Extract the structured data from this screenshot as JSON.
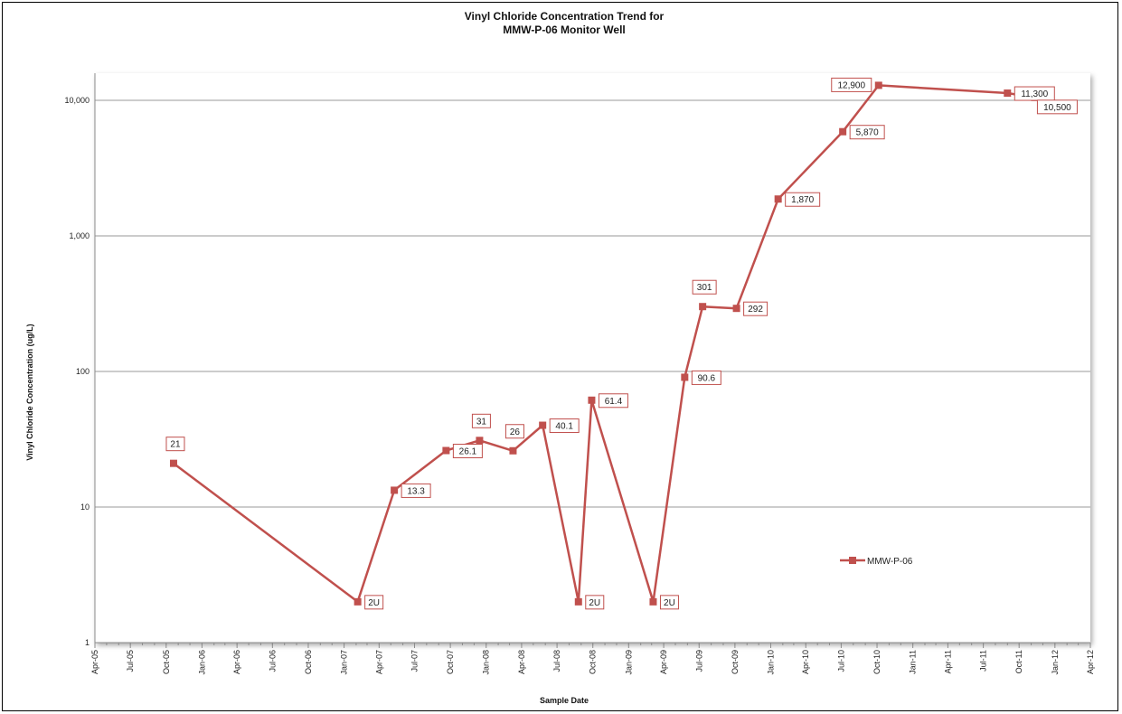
{
  "chart_data": {
    "type": "line",
    "title": "Vinyl Chloride Concentration Trend for",
    "subtitle": "MMW-P-06 Monitor Well",
    "xlabel": "Sample Date",
    "ylabel": "Vinyl Chloride Concentration (ug/L)",
    "y_scale": "log",
    "ylim": [
      1,
      15849
    ],
    "y_ticks": [
      {
        "value": 1,
        "label": "1"
      },
      {
        "value": 10,
        "label": "10"
      },
      {
        "value": 100,
        "label": "100"
      },
      {
        "value": 1000,
        "label": "1,000"
      },
      {
        "value": 10000,
        "label": "10,000"
      }
    ],
    "xlim": [
      "2005-04-01",
      "2012-04-01"
    ],
    "x_ticks": [
      {
        "date": "2005-04-01",
        "label": "Apr-05"
      },
      {
        "date": "2005-07-01",
        "label": "Jul-05"
      },
      {
        "date": "2005-10-01",
        "label": "Oct-05"
      },
      {
        "date": "2006-01-01",
        "label": "Jan-06"
      },
      {
        "date": "2006-04-01",
        "label": "Apr-06"
      },
      {
        "date": "2006-07-01",
        "label": "Jul-06"
      },
      {
        "date": "2006-10-01",
        "label": "Oct-06"
      },
      {
        "date": "2007-01-01",
        "label": "Jan-07"
      },
      {
        "date": "2007-04-01",
        "label": "Apr-07"
      },
      {
        "date": "2007-07-01",
        "label": "Jul-07"
      },
      {
        "date": "2007-10-01",
        "label": "Oct-07"
      },
      {
        "date": "2008-01-01",
        "label": "Jan-08"
      },
      {
        "date": "2008-04-01",
        "label": "Apr-08"
      },
      {
        "date": "2008-07-01",
        "label": "Jul-08"
      },
      {
        "date": "2008-10-01",
        "label": "Oct-08"
      },
      {
        "date": "2009-01-01",
        "label": "Jan-09"
      },
      {
        "date": "2009-04-01",
        "label": "Apr-09"
      },
      {
        "date": "2009-07-01",
        "label": "Jul-09"
      },
      {
        "date": "2009-10-01",
        "label": "Oct-09"
      },
      {
        "date": "2010-01-01",
        "label": "Jan-10"
      },
      {
        "date": "2010-04-01",
        "label": "Apr-10"
      },
      {
        "date": "2010-07-01",
        "label": "Jul-10"
      },
      {
        "date": "2010-10-01",
        "label": "Oct-10"
      },
      {
        "date": "2011-01-01",
        "label": "Jan-11"
      },
      {
        "date": "2011-04-01",
        "label": "Apr-11"
      },
      {
        "date": "2011-07-01",
        "label": "Jul-11"
      },
      {
        "date": "2011-10-01",
        "label": "Oct-11"
      },
      {
        "date": "2012-01-01",
        "label": "Jan-12"
      },
      {
        "date": "2012-04-01",
        "label": "Apr-12"
      }
    ],
    "grid": {
      "horizontal": true,
      "vertical": false
    },
    "legend_position": "lower-right",
    "series": [
      {
        "name": "MMW-P-06",
        "color": "#C0504D",
        "marker": "square",
        "points": [
          {
            "date": "2005-10-20",
            "value": 21,
            "label": "21",
            "label_pos": "above"
          },
          {
            "date": "2007-02-05",
            "value": 2,
            "label": "2U",
            "label_pos": "right"
          },
          {
            "date": "2007-05-10",
            "value": 13.3,
            "label": "13.3",
            "label_pos": "right"
          },
          {
            "date": "2007-09-20",
            "value": 26.1,
            "label": "26.1",
            "label_pos": "right"
          },
          {
            "date": "2007-12-15",
            "value": 31,
            "label": "31",
            "label_pos": "above"
          },
          {
            "date": "2008-03-10",
            "value": 26,
            "label": "26",
            "label_pos": "above"
          },
          {
            "date": "2008-05-25",
            "value": 40.1,
            "label": "40.1",
            "label_pos": "right"
          },
          {
            "date": "2008-08-25",
            "value": 2,
            "label": "2U",
            "label_pos": "right"
          },
          {
            "date": "2008-09-28",
            "value": 61.4,
            "label": "61.4",
            "label_pos": "right"
          },
          {
            "date": "2009-03-05",
            "value": 2,
            "label": "2U",
            "label_pos": "right"
          },
          {
            "date": "2009-05-25",
            "value": 90.6,
            "label": "90.6",
            "label_pos": "right"
          },
          {
            "date": "2009-07-10",
            "value": 301,
            "label": "301",
            "label_pos": "above"
          },
          {
            "date": "2009-10-05",
            "value": 292,
            "label": "292",
            "label_pos": "right"
          },
          {
            "date": "2010-01-20",
            "value": 1870,
            "label": "1,870",
            "label_pos": "right"
          },
          {
            "date": "2010-07-05",
            "value": 5870,
            "label": "5,870",
            "label_pos": "right"
          },
          {
            "date": "2010-10-05",
            "value": 12900,
            "label": "12,900",
            "label_pos": "left"
          },
          {
            "date": "2011-09-01",
            "value": 11300,
            "label": "11,300",
            "label_pos": "right"
          },
          {
            "date": "2011-11-10",
            "value": 10500,
            "label": "10,500",
            "label_pos": "below"
          }
        ]
      }
    ]
  }
}
